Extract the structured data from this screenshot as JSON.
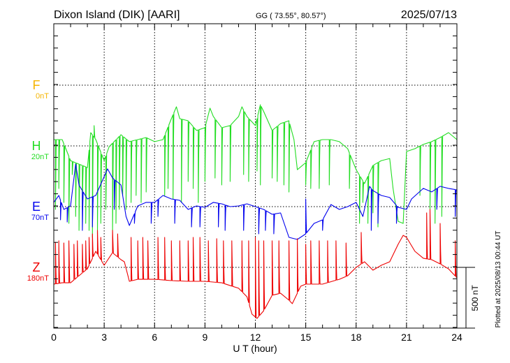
{
  "header": {
    "station": "Dixon Island (DIK)  [AARI]",
    "coords": "GG ( 73.55°,  80.57°)",
    "date": "2025/07/13"
  },
  "footer": {
    "plotted": "Plotted at 2025/08/13 00:44 UT",
    "scale": "500 nT"
  },
  "chart_data": {
    "type": "line",
    "title": "Dixon Island (DIK)  [AARI]",
    "xlabel": "U T (hour)",
    "ylabel": "",
    "xlim": [
      0,
      24
    ],
    "xticks": [
      "0",
      "3",
      "6",
      "9",
      "12",
      "15",
      "18",
      "21",
      "24"
    ],
    "scale_bar_nT": 500,
    "grid": true,
    "series": [
      {
        "name": "F",
        "offset": "0nT",
        "color": "#f5b400",
        "base": [],
        "spikes": []
      },
      {
        "name": "H",
        "offset": "20nT",
        "color": "#22dd22",
        "base": [
          [
            0,
            52
          ],
          [
            0.5,
            52
          ],
          [
            1,
            -121
          ],
          [
            1.5,
            -150
          ],
          [
            2,
            -178
          ],
          [
            2.2,
            109
          ],
          [
            2.5,
            52
          ],
          [
            3,
            -121
          ],
          [
            3.3,
            -6
          ],
          [
            4,
            92
          ],
          [
            4.5,
            35
          ],
          [
            5,
            52
          ],
          [
            5.5,
            69
          ],
          [
            6,
            35
          ],
          [
            6.5,
            52
          ],
          [
            7,
            224
          ],
          [
            7.3,
            322
          ],
          [
            7.5,
            224
          ],
          [
            8,
            207
          ],
          [
            8.5,
            127
          ],
          [
            9,
            150
          ],
          [
            9.3,
            311
          ],
          [
            9.5,
            242
          ],
          [
            10,
            150
          ],
          [
            10.5,
            167
          ],
          [
            11,
            242
          ],
          [
            11.2,
            322
          ],
          [
            11.5,
            242
          ],
          [
            12,
            167
          ],
          [
            12.3,
            339
          ],
          [
            12.5,
            282
          ],
          [
            13,
            127
          ],
          [
            13.5,
            184
          ],
          [
            14,
            207
          ],
          [
            14.3,
            52
          ],
          [
            14.5,
            -196
          ],
          [
            15,
            -138
          ],
          [
            15.5,
            35
          ],
          [
            16,
            52
          ],
          [
            16.5,
            52
          ],
          [
            17,
            35
          ],
          [
            17.5,
            -23
          ],
          [
            18,
            -196
          ],
          [
            18.5,
            -310
          ],
          [
            19,
            -161
          ],
          [
            19.5,
            -121
          ],
          [
            20,
            -104
          ],
          [
            20.2,
            -350
          ],
          [
            20.5,
            -621
          ],
          [
            20.8,
            -638
          ],
          [
            21,
            -46
          ],
          [
            21.5,
            -23
          ],
          [
            22,
            12
          ],
          [
            22.5,
            35
          ],
          [
            23,
            69
          ],
          [
            23.5,
            109
          ],
          [
            24,
            52
          ]
        ],
        "spikes": [
          [
            0.1,
            -523
          ],
          [
            0.3,
            -351
          ],
          [
            0.6,
            -466
          ],
          [
            0.9,
            -638
          ],
          [
            1.1,
            -236
          ],
          [
            1.3,
            -581
          ],
          [
            1.5,
            -696
          ],
          [
            1.7,
            -523
          ],
          [
            1.9,
            -638
          ],
          [
            2.1,
            -696
          ],
          [
            2.3,
            -753
          ],
          [
            2.4,
            167
          ],
          [
            2.6,
            -725
          ],
          [
            2.8,
            -638
          ],
          [
            3.1,
            -523
          ],
          [
            3.5,
            -696
          ],
          [
            3.7,
            -638
          ],
          [
            3.9,
            -523
          ],
          [
            4.1,
            -408
          ],
          [
            4.3,
            -523
          ],
          [
            4.6,
            -466
          ],
          [
            4.9,
            -408
          ],
          [
            5.2,
            -466
          ],
          [
            5.5,
            -380
          ],
          [
            6.6,
            -408
          ],
          [
            6.8,
            -351
          ],
          [
            7.1,
            -437
          ],
          [
            7.6,
            -466
          ],
          [
            8.0,
            -293
          ],
          [
            8.3,
            -351
          ],
          [
            8.6,
            -466
          ],
          [
            9.0,
            -293
          ],
          [
            9.6,
            -265
          ],
          [
            10.0,
            -322
          ],
          [
            10.5,
            -293
          ],
          [
            11.3,
            -236
          ],
          [
            11.6,
            -293
          ],
          [
            12.1,
            -207
          ],
          [
            12.3,
            -322
          ],
          [
            13.0,
            -265
          ],
          [
            13.3,
            -293
          ],
          [
            13.7,
            -322
          ],
          [
            14.0,
            -380
          ],
          [
            15.0,
            -322
          ],
          [
            15.3,
            -351
          ],
          [
            15.8,
            -351
          ],
          [
            16.4,
            -322
          ],
          [
            17.6,
            -351
          ],
          [
            18.2,
            -638
          ],
          [
            18.4,
            -466
          ],
          [
            18.7,
            -638
          ],
          [
            19.0,
            -552
          ],
          [
            19.3,
            -667
          ],
          [
            21.8,
            -408
          ],
          [
            22.4,
            -523
          ],
          [
            22.7,
            -638
          ],
          [
            23.1,
            -581
          ]
        ]
      },
      {
        "name": "E",
        "offset": "70nT",
        "color": "#0000ee",
        "base": [
          [
            0,
            35
          ],
          [
            0.3,
            92
          ],
          [
            0.6,
            -23
          ],
          [
            1,
            6
          ],
          [
            1.3,
            351
          ],
          [
            1.5,
            178
          ],
          [
            2,
            63
          ],
          [
            2.5,
            92
          ],
          [
            3,
            247
          ],
          [
            3.2,
            311
          ],
          [
            3.5,
            236
          ],
          [
            4,
            178
          ],
          [
            4.3,
            -81
          ],
          [
            4.5,
            -155
          ],
          [
            5,
            6
          ],
          [
            5.5,
            35
          ],
          [
            6,
            35
          ],
          [
            6.5,
            92
          ],
          [
            7,
            63
          ],
          [
            7.5,
            52
          ],
          [
            8,
            -23
          ],
          [
            8.5,
            6
          ],
          [
            9,
            -6
          ],
          [
            9.5,
            35
          ],
          [
            10,
            23
          ],
          [
            10.5,
            0
          ],
          [
            11,
            6
          ],
          [
            11.5,
            23
          ],
          [
            12,
            0
          ],
          [
            12.5,
            -23
          ],
          [
            13,
            -63
          ],
          [
            13.5,
            -52
          ],
          [
            14,
            -253
          ],
          [
            14.5,
            -270
          ],
          [
            15,
            -224
          ],
          [
            15.5,
            -138
          ],
          [
            16,
            -109
          ],
          [
            16.5,
            17
          ],
          [
            17,
            -23
          ],
          [
            17.5,
            0
          ],
          [
            18,
            35
          ],
          [
            18.4,
            -81
          ],
          [
            18.8,
            167
          ],
          [
            19,
            132
          ],
          [
            19.5,
            92
          ],
          [
            20,
            75
          ],
          [
            20.5,
            -6
          ],
          [
            21,
            -23
          ],
          [
            21.3,
            63
          ],
          [
            22,
            150
          ],
          [
            22.5,
            121
          ],
          [
            23,
            167
          ],
          [
            23.5,
            150
          ],
          [
            24,
            138
          ]
        ],
        "spikes": [
          [
            0.4,
            -109
          ],
          [
            0.8,
            -127
          ],
          [
            1.7,
            -196
          ],
          [
            2.3,
            -167
          ],
          [
            3.6,
            -23
          ],
          [
            4.8,
            -138
          ],
          [
            5.8,
            -138
          ],
          [
            6.2,
            -81
          ],
          [
            7.2,
            -138
          ],
          [
            8.2,
            -167
          ],
          [
            8.7,
            -167
          ],
          [
            9.8,
            -167
          ],
          [
            10.2,
            -196
          ],
          [
            11.3,
            -196
          ],
          [
            12.2,
            -224
          ],
          [
            12.6,
            -196
          ],
          [
            13.1,
            -224
          ],
          [
            15.0,
            63
          ],
          [
            16.0,
            -196
          ],
          [
            18.9,
            -196
          ],
          [
            19.3,
            -138
          ],
          [
            20.4,
            -138
          ],
          [
            22.8,
            -23
          ],
          [
            23.9,
            -81
          ]
        ]
      },
      {
        "name": "Z",
        "offset": "180nT",
        "color": "#ee0000",
        "base": [
          [
            0,
            -138
          ],
          [
            0.5,
            -127
          ],
          [
            1,
            -127
          ],
          [
            1.5,
            -69
          ],
          [
            2,
            -12
          ],
          [
            2.5,
            132
          ],
          [
            3,
            17
          ],
          [
            3.5,
            121
          ],
          [
            4,
            63
          ],
          [
            4.2,
            46
          ],
          [
            4.5,
            -115
          ],
          [
            5,
            -98
          ],
          [
            6,
            -98
          ],
          [
            7,
            -109
          ],
          [
            8,
            -115
          ],
          [
            9,
            -115
          ],
          [
            10,
            -127
          ],
          [
            11,
            -172
          ],
          [
            11.5,
            -242
          ],
          [
            11.8,
            -385
          ],
          [
            12.1,
            -420
          ],
          [
            12.5,
            -357
          ],
          [
            13,
            -230
          ],
          [
            13.5,
            -213
          ],
          [
            14,
            -270
          ],
          [
            14.2,
            -299
          ],
          [
            14.7,
            -155
          ],
          [
            15,
            -138
          ],
          [
            16,
            -138
          ],
          [
            17,
            -98
          ],
          [
            17.5,
            -69
          ],
          [
            18,
            0
          ],
          [
            18.5,
            46
          ],
          [
            19,
            -23
          ],
          [
            19.5,
            17
          ],
          [
            20,
            46
          ],
          [
            20.5,
            190
          ],
          [
            20.8,
            264
          ],
          [
            21,
            247
          ],
          [
            21.5,
            132
          ],
          [
            22,
            75
          ],
          [
            22.5,
            63
          ],
          [
            23,
            29
          ],
          [
            23.5,
            -12
          ],
          [
            24,
            -86
          ]
        ],
        "spikes": [
          [
            0.1,
            207
          ],
          [
            0.3,
            219
          ],
          [
            0.6,
            201
          ],
          [
            0.9,
            219
          ],
          [
            1.2,
            190
          ],
          [
            1.4,
            219
          ],
          [
            1.7,
            190
          ],
          [
            1.9,
            219
          ],
          [
            2.1,
            247
          ],
          [
            2.3,
            276
          ],
          [
            2.6,
            305
          ],
          [
            2.8,
            247
          ],
          [
            3.5,
            305
          ],
          [
            3.8,
            276
          ],
          [
            4.6,
            247
          ],
          [
            5.0,
            219
          ],
          [
            5.3,
            247
          ],
          [
            5.6,
            219
          ],
          [
            6.2,
            247
          ],
          [
            6.6,
            247
          ],
          [
            7.0,
            219
          ],
          [
            7.5,
            219
          ],
          [
            8.0,
            219
          ],
          [
            8.3,
            247
          ],
          [
            8.7,
            247
          ],
          [
            9.2,
            219
          ],
          [
            9.7,
            236
          ],
          [
            10.1,
            219
          ],
          [
            10.6,
            219
          ],
          [
            11.2,
            219
          ],
          [
            11.6,
            219
          ],
          [
            12.0,
            247
          ],
          [
            12.2,
            219
          ],
          [
            12.5,
            219
          ],
          [
            13.0,
            219
          ],
          [
            13.4,
            219
          ],
          [
            14.0,
            219
          ],
          [
            14.5,
            236
          ],
          [
            15.0,
            190
          ],
          [
            15.3,
            219
          ],
          [
            15.8,
            219
          ],
          [
            16.3,
            219
          ],
          [
            16.8,
            219
          ],
          [
            17.4,
            201
          ],
          [
            18.3,
            288
          ],
          [
            22.2,
            449
          ],
          [
            22.4,
            477
          ],
          [
            23.0,
            362
          ],
          [
            23.9,
            219
          ]
        ]
      }
    ]
  }
}
